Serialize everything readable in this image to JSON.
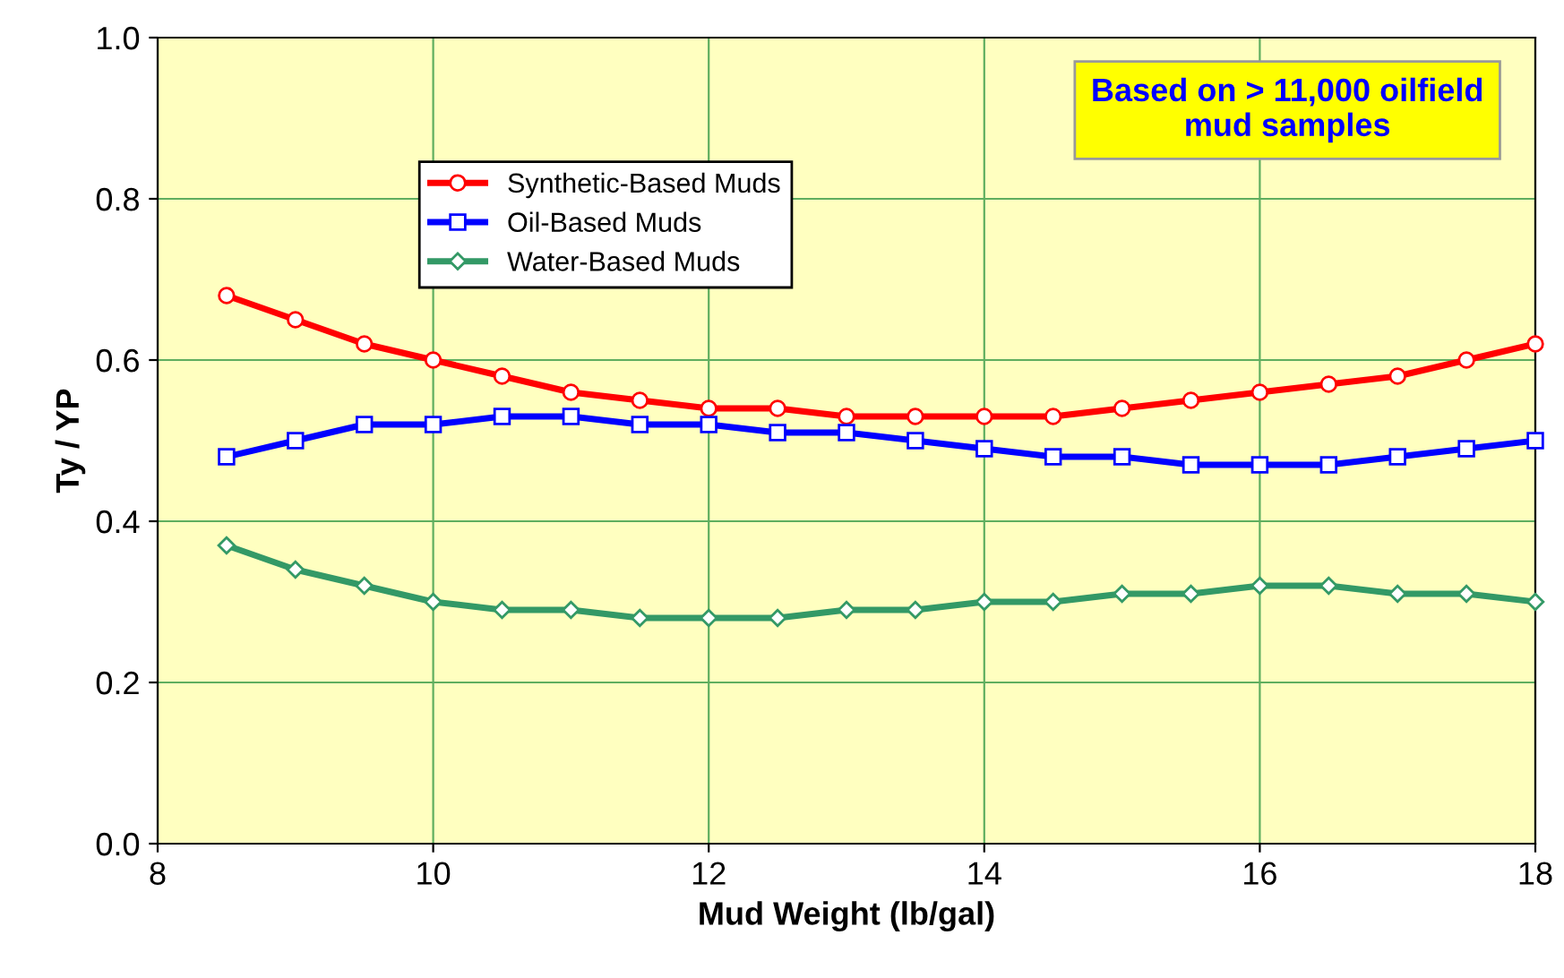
{
  "chart_data": {
    "type": "line",
    "xlabel": "Mud Weight (lb/gal)",
    "ylabel": "Ty / YP",
    "x": [
      8.5,
      9,
      9.5,
      10,
      10.5,
      11,
      11.5,
      12,
      12.5,
      13,
      13.5,
      14,
      14.5,
      15,
      15.5,
      16,
      16.5,
      17,
      17.5,
      18
    ],
    "series": [
      {
        "name": "Synthetic-Based Muds",
        "color": "#ff0000",
        "marker": "circle",
        "values": [
          0.68,
          0.65,
          0.62,
          0.6,
          0.58,
          0.56,
          0.55,
          0.54,
          0.54,
          0.53,
          0.53,
          0.53,
          0.53,
          0.54,
          0.55,
          0.56,
          0.57,
          0.58,
          0.6,
          0.62
        ]
      },
      {
        "name": "Oil-Based Muds",
        "color": "#0000ff",
        "marker": "square",
        "values": [
          0.48,
          0.5,
          0.52,
          0.52,
          0.53,
          0.53,
          0.52,
          0.52,
          0.51,
          0.51,
          0.5,
          0.49,
          0.48,
          0.48,
          0.47,
          0.47,
          0.47,
          0.48,
          0.49,
          0.5
        ]
      },
      {
        "name": "Water-Based Muds",
        "color": "#339966",
        "marker": "diamond",
        "values": [
          0.37,
          0.34,
          0.32,
          0.3,
          0.29,
          0.29,
          0.28,
          0.28,
          0.28,
          0.29,
          0.29,
          0.3,
          0.3,
          0.31,
          0.31,
          0.32,
          0.32,
          0.31,
          0.31,
          0.3
        ]
      }
    ],
    "xlim": [
      8,
      18
    ],
    "xticks": [
      8,
      10,
      12,
      14,
      16,
      18
    ],
    "ylim": [
      0,
      1
    ],
    "yticks": [
      {
        "value": 0,
        "label": "0.0"
      },
      {
        "value": 0.2,
        "label": "0.2"
      },
      {
        "value": 0.4,
        "label": "0.4"
      },
      {
        "value": 0.6,
        "label": "0.6"
      },
      {
        "value": 0.8,
        "label": "0.8"
      },
      {
        "value": 1,
        "label": "1.0"
      }
    ],
    "grid": true,
    "legend": "top",
    "line_style": "solid",
    "annotations": [
      "Based on > 11,000 oilfield\nmud samples"
    ]
  }
}
